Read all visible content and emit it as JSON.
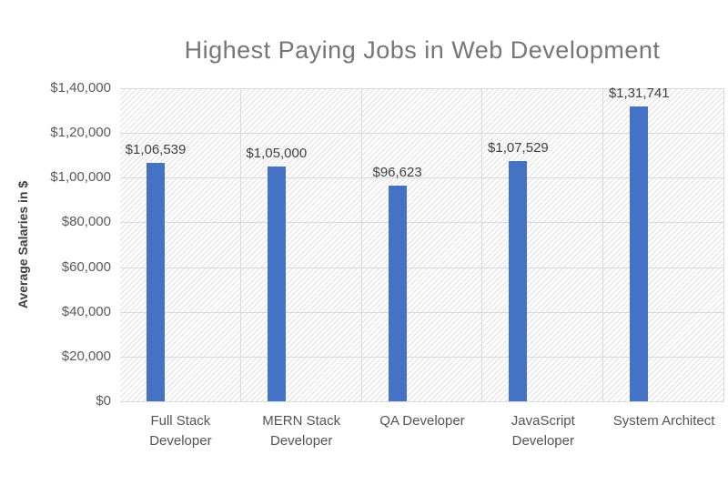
{
  "chart_data": {
    "type": "bar",
    "title": "Highest Paying Jobs in Web Development",
    "xlabel": "",
    "ylabel": "Average Salaries in $",
    "categories": [
      "Full Stack Developer",
      "MERN Stack Developer",
      "QA Developer",
      "JavaScript Developer",
      "System Architect"
    ],
    "category_lines": [
      [
        "Full Stack",
        "Developer"
      ],
      [
        "MERN Stack",
        "Developer"
      ],
      [
        "QA Developer"
      ],
      [
        "JavaScript",
        "Developer"
      ],
      [
        "System Architect"
      ]
    ],
    "values": [
      106539,
      105000,
      96623,
      107529,
      131741
    ],
    "data_labels": [
      "$1,06,539",
      "$1,05,000",
      "$96,623",
      "$1,07,529",
      "$1,31,741"
    ],
    "ylim": [
      0,
      140000
    ],
    "ytick_step": 20000,
    "ytick_labels_bottom_up": [
      "$0",
      "$20,000",
      "$40,000",
      "$60,000",
      "$80,000",
      "$1,00,000",
      "$1,20,000",
      "$1,40,000"
    ],
    "grid": true,
    "legend": "none",
    "colors": {
      "bar": "#4472C4",
      "gridline": "#D9D9D9",
      "title_text": "#767676",
      "tick_text": "#595959",
      "data_label_text": "#404040",
      "axis_title_text": "#3F3F3F"
    }
  }
}
